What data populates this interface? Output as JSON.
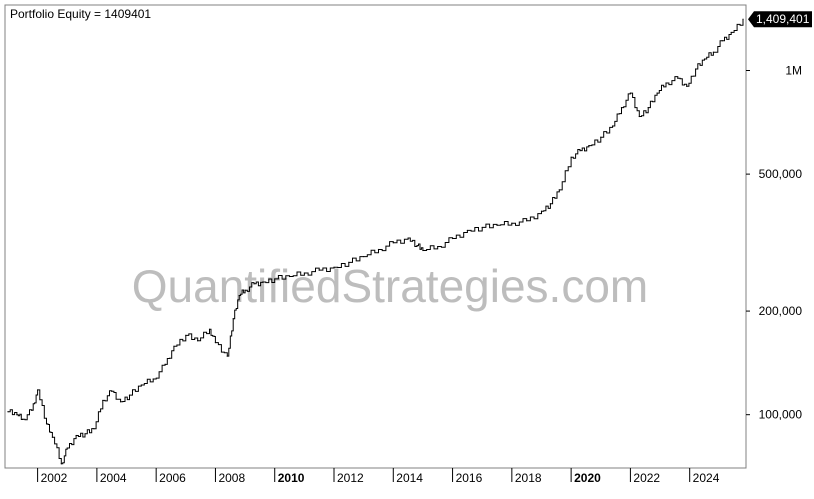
{
  "title": "Portfolio Equity = 1409401",
  "watermark": "QuantifiedStrategies.com",
  "last_value_label": "1,409,401",
  "colors": {
    "line": "#000000",
    "background": "#ffffff",
    "frame": "#808080",
    "watermark": "#bdbdbd",
    "last_badge": "#000000"
  },
  "chart_data": {
    "type": "line",
    "title": "Portfolio Equity = 1409401",
    "xlabel": "",
    "ylabel": "",
    "y_scale": "log",
    "grid": false,
    "xlim": [
      2000.9,
      2025.9
    ],
    "ylim": [
      70000,
      1550000
    ],
    "x_ticks": [
      {
        "label": "2002",
        "value": 2002,
        "bold": false
      },
      {
        "label": "2004",
        "value": 2004,
        "bold": false
      },
      {
        "label": "2006",
        "value": 2006,
        "bold": false
      },
      {
        "label": "2008",
        "value": 2008,
        "bold": false
      },
      {
        "label": "2010",
        "value": 2010,
        "bold": true
      },
      {
        "label": "2012",
        "value": 2012,
        "bold": false
      },
      {
        "label": "2014",
        "value": 2014,
        "bold": false
      },
      {
        "label": "2016",
        "value": 2016,
        "bold": false
      },
      {
        "label": "2018",
        "value": 2018,
        "bold": false
      },
      {
        "label": "2020",
        "value": 2020,
        "bold": true
      },
      {
        "label": "2022",
        "value": 2022,
        "bold": false
      },
      {
        "label": "2024",
        "value": 2024,
        "bold": false
      }
    ],
    "y_ticks": [
      {
        "label": "100,000",
        "value": 100000
      },
      {
        "label": "200,000",
        "value": 200000
      },
      {
        "label": "500,000",
        "value": 500000
      },
      {
        "label": "1M",
        "value": 1000000
      }
    ],
    "series": [
      {
        "x": [
          2001.0,
          2001.3,
          2001.5,
          2001.8,
          2002.0,
          2002.3,
          2002.5,
          2002.8,
          2003.0,
          2003.3,
          2003.6,
          2003.9,
          2004.2,
          2004.5,
          2004.8,
          2005.1,
          2005.5,
          2005.9,
          2006.3,
          2006.6,
          2007.0,
          2007.4,
          2007.8,
          2008.0,
          2008.4,
          2008.6,
          2008.8,
          2009.0,
          2009.3,
          2009.6,
          2010.0,
          2010.5,
          2011.0,
          2011.5,
          2012.0,
          2012.5,
          2013.0,
          2013.5,
          2014.0,
          2014.5,
          2014.8,
          2015.0,
          2015.5,
          2016.0,
          2016.5,
          2017.0,
          2017.5,
          2018.0,
          2018.5,
          2019.0,
          2019.3,
          2019.6,
          2020.0,
          2020.3,
          2020.6,
          2021.0,
          2021.4,
          2021.7,
          2022.0,
          2022.3,
          2022.6,
          2022.9,
          2023.2,
          2023.6,
          2023.9,
          2024.2,
          2024.5,
          2024.8,
          2025.1,
          2025.4,
          2025.8
        ],
        "y": [
          102000,
          100000,
          97000,
          103000,
          118000,
          94000,
          86000,
          72000,
          80000,
          87000,
          88000,
          91000,
          110000,
          117000,
          109000,
          114000,
          122000,
          127000,
          140000,
          158000,
          170000,
          164000,
          177000,
          162000,
          148000,
          190000,
          222000,
          230000,
          240000,
          243000,
          248000,
          252000,
          258000,
          263000,
          268000,
          277000,
          288000,
          302000,
          316000,
          326000,
          310000,
          300000,
          308000,
          325000,
          343000,
          350000,
          355000,
          360000,
          366000,
          390000,
          410000,
          450000,
          560000,
          585000,
          605000,
          640000,
          690000,
          780000,
          860000,
          735000,
          780000,
          860000,
          920000,
          950000,
          900000,
          1010000,
          1080000,
          1130000,
          1220000,
          1290000,
          1409401
        ]
      }
    ]
  }
}
